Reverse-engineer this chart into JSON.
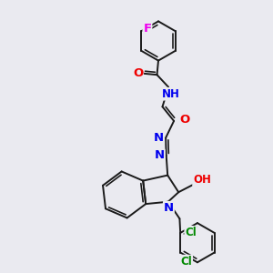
{
  "background_color": "#eaeaf0",
  "bond_color": "#1a1a1a",
  "bond_width": 1.4,
  "atom_colors": {
    "N": "#0000ee",
    "O": "#ee0000",
    "F": "#ee00ee",
    "Cl": "#008800",
    "H": "#008888"
  },
  "font_size": 8.5
}
